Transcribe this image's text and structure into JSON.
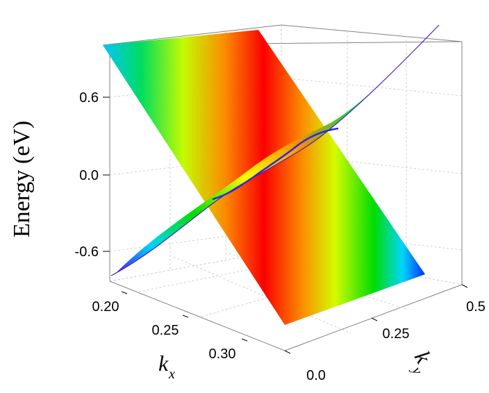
{
  "chart_data": {
    "type": "surface",
    "title": "",
    "zlabel": "Energy (eV)",
    "xlabel": "k",
    "xlabel_sub": "x",
    "ylabel": "k",
    "ylabel_sub": "y",
    "zticks": [
      "0.6",
      "0.0",
      "-0.6"
    ],
    "zlim": [
      -0.9,
      1.0
    ],
    "xticks": [
      "0.20",
      "0.25",
      "0.30"
    ],
    "yticks": [
      "0.0",
      "0.25",
      "0.5"
    ],
    "colormap": [
      "#ff0000",
      "#ff8c00",
      "#ffff00",
      "#00e000",
      "#00e0ff",
      "#0030ff"
    ],
    "intersection_color": "#2a2adf",
    "surfaces": [
      {
        "z_near": 1.0,
        "z_far": -0.9,
        "description_values": "descending band"
      },
      {
        "z_near": -0.9,
        "z_far": 1.0,
        "description_values": "ascending band"
      }
    ]
  }
}
